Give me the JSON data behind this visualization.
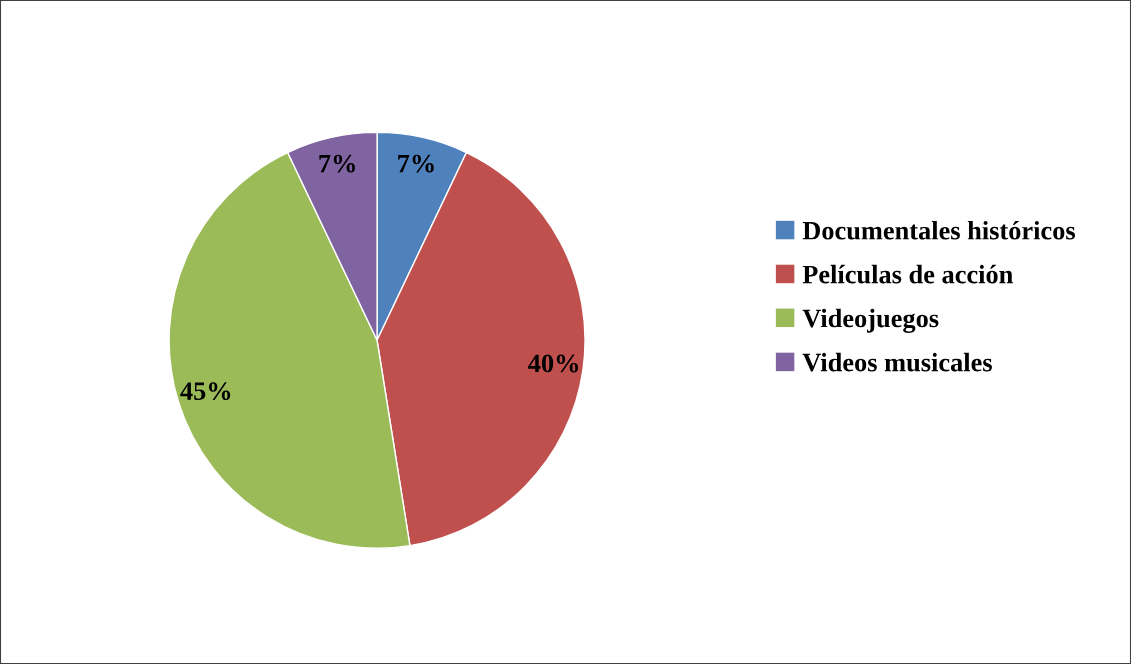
{
  "chart_data": {
    "type": "pie",
    "categories": [
      "Documentales históricos",
      "Películas de acción",
      "Videojuegos",
      "Videos musicales"
    ],
    "values": [
      7,
      40,
      45,
      7
    ],
    "colors": [
      "#4f81bd",
      "#c0504d",
      "#9bbb59",
      "#8064a2"
    ],
    "value_labels": [
      "7%",
      "40%",
      "45%",
      "7%"
    ],
    "legend": "right"
  }
}
